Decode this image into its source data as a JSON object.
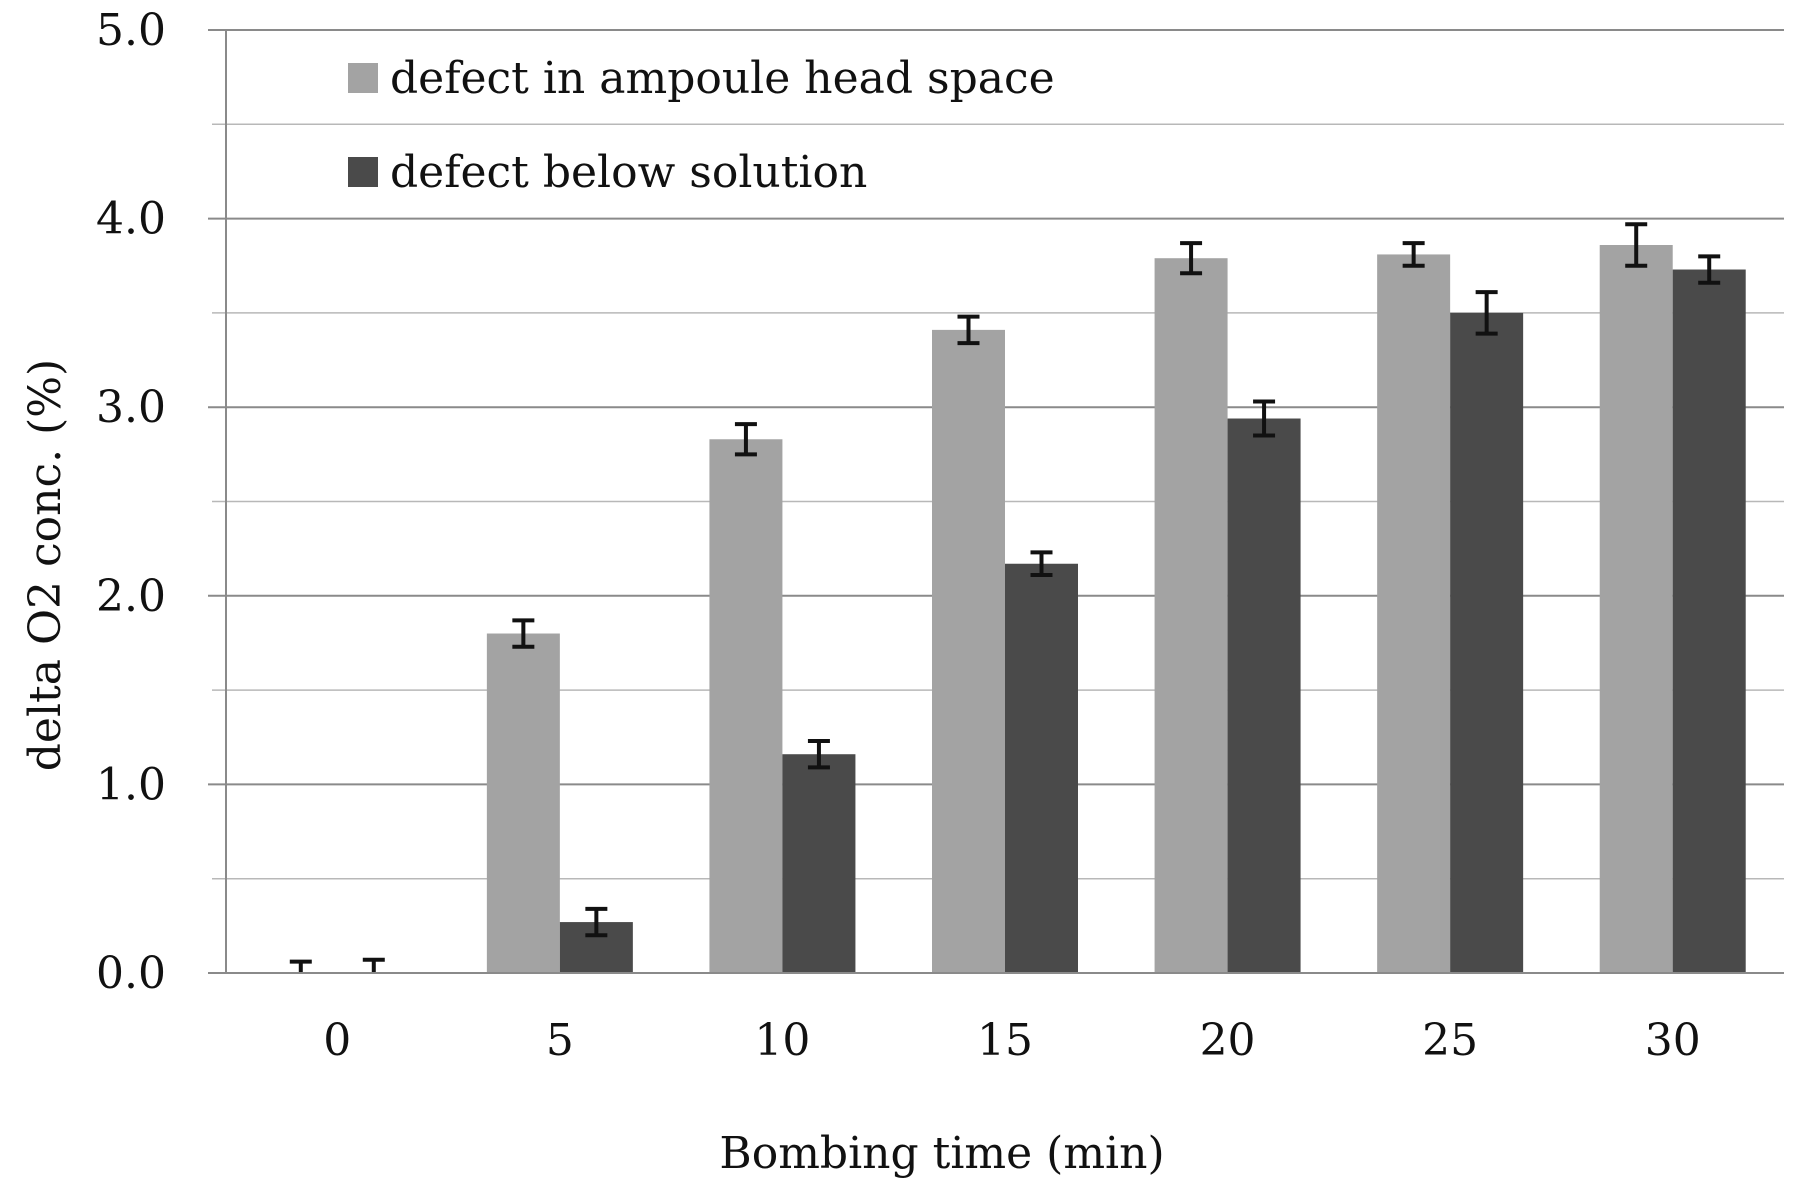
{
  "chart_data": {
    "type": "bar",
    "xlabel": "Bombing time (min)",
    "ylabel": "delta O2 conc. (%)",
    "categories": [
      "0",
      "5",
      "10",
      "15",
      "20",
      "25",
      "30"
    ],
    "ylim": [
      0,
      5
    ],
    "yticks": [
      "0.0",
      "1.0",
      "2.0",
      "3.0",
      "4.0",
      "5.0"
    ],
    "grid": "horizontal",
    "legend_position": "top-left",
    "series": [
      {
        "name": "defect in ampoule head space",
        "color": "#a3a3a3",
        "values": [
          0.0,
          1.8,
          2.83,
          3.41,
          3.79,
          3.81,
          3.86
        ],
        "errors": [
          0.06,
          0.07,
          0.08,
          0.07,
          0.08,
          0.06,
          0.11
        ]
      },
      {
        "name": "defect below solution",
        "color": "#4a4a4a",
        "values": [
          0.0,
          0.27,
          1.16,
          2.17,
          2.94,
          3.5,
          3.73
        ],
        "errors": [
          0.07,
          0.07,
          0.07,
          0.06,
          0.09,
          0.11,
          0.07
        ]
      }
    ]
  }
}
